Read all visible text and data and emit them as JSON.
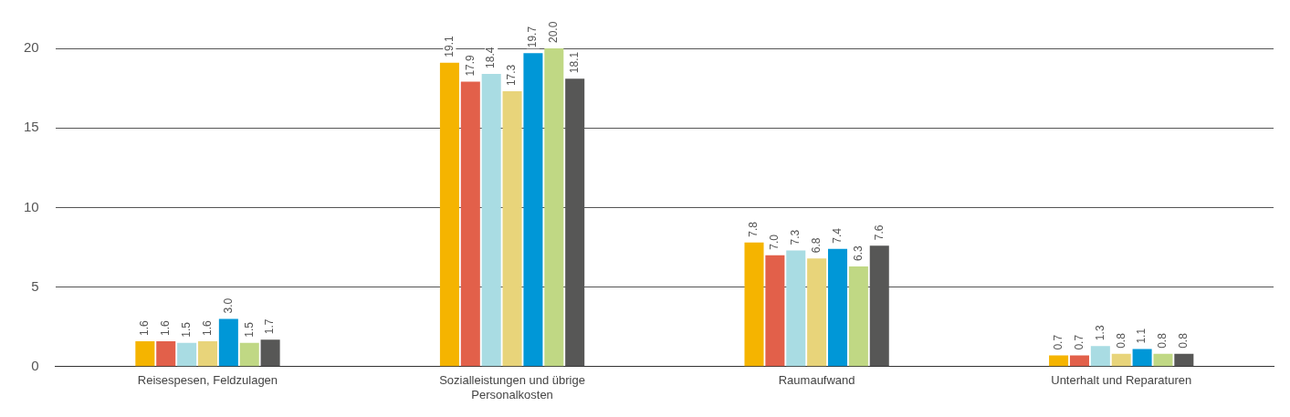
{
  "chart_data": {
    "type": "bar",
    "categories": [
      "Reisespesen, Feldzulagen",
      "Sozialleistungen und übrige Personalkosten",
      "Raumaufwand",
      "Unterhalt und Reparaturen"
    ],
    "series": [
      {
        "color": "#f5b400",
        "values": [
          1.6,
          19.1,
          7.8,
          0.7
        ],
        "value_labels": [
          "1.6",
          "19.1",
          "7.8",
          "0.7"
        ]
      },
      {
        "color": "#e2604a",
        "values": [
          1.6,
          17.9,
          7.0,
          0.7
        ],
        "value_labels": [
          "1.6",
          "17.9",
          "7.0",
          "0.7"
        ]
      },
      {
        "color": "#a9dce3",
        "values": [
          1.5,
          18.4,
          7.3,
          1.3
        ],
        "value_labels": [
          "1.5",
          "18.4",
          "7.3",
          "1.3"
        ]
      },
      {
        "color": "#e8d47a",
        "values": [
          1.6,
          17.3,
          6.8,
          0.8
        ],
        "value_labels": [
          "1.6",
          "17.3",
          "6.8",
          "0.8"
        ]
      },
      {
        "color": "#0097d7",
        "values": [
          3.0,
          19.7,
          7.4,
          1.1
        ],
        "value_labels": [
          "3.0",
          "19.7",
          "7.4",
          "1.1"
        ]
      },
      {
        "color": "#c0d884",
        "values": [
          1.5,
          20.0,
          6.3,
          0.8
        ],
        "value_labels": [
          "1.5",
          "20.0",
          "6.3",
          "0.8"
        ]
      },
      {
        "color": "#575756",
        "values": [
          1.7,
          18.1,
          7.6,
          0.8
        ],
        "value_labels": [
          "1.7",
          "18.1",
          "7.6",
          "0.8"
        ]
      }
    ],
    "ylim": [
      0,
      20
    ],
    "yticks": [
      0,
      5,
      10,
      15,
      20
    ],
    "grid": "y",
    "legend": false
  }
}
